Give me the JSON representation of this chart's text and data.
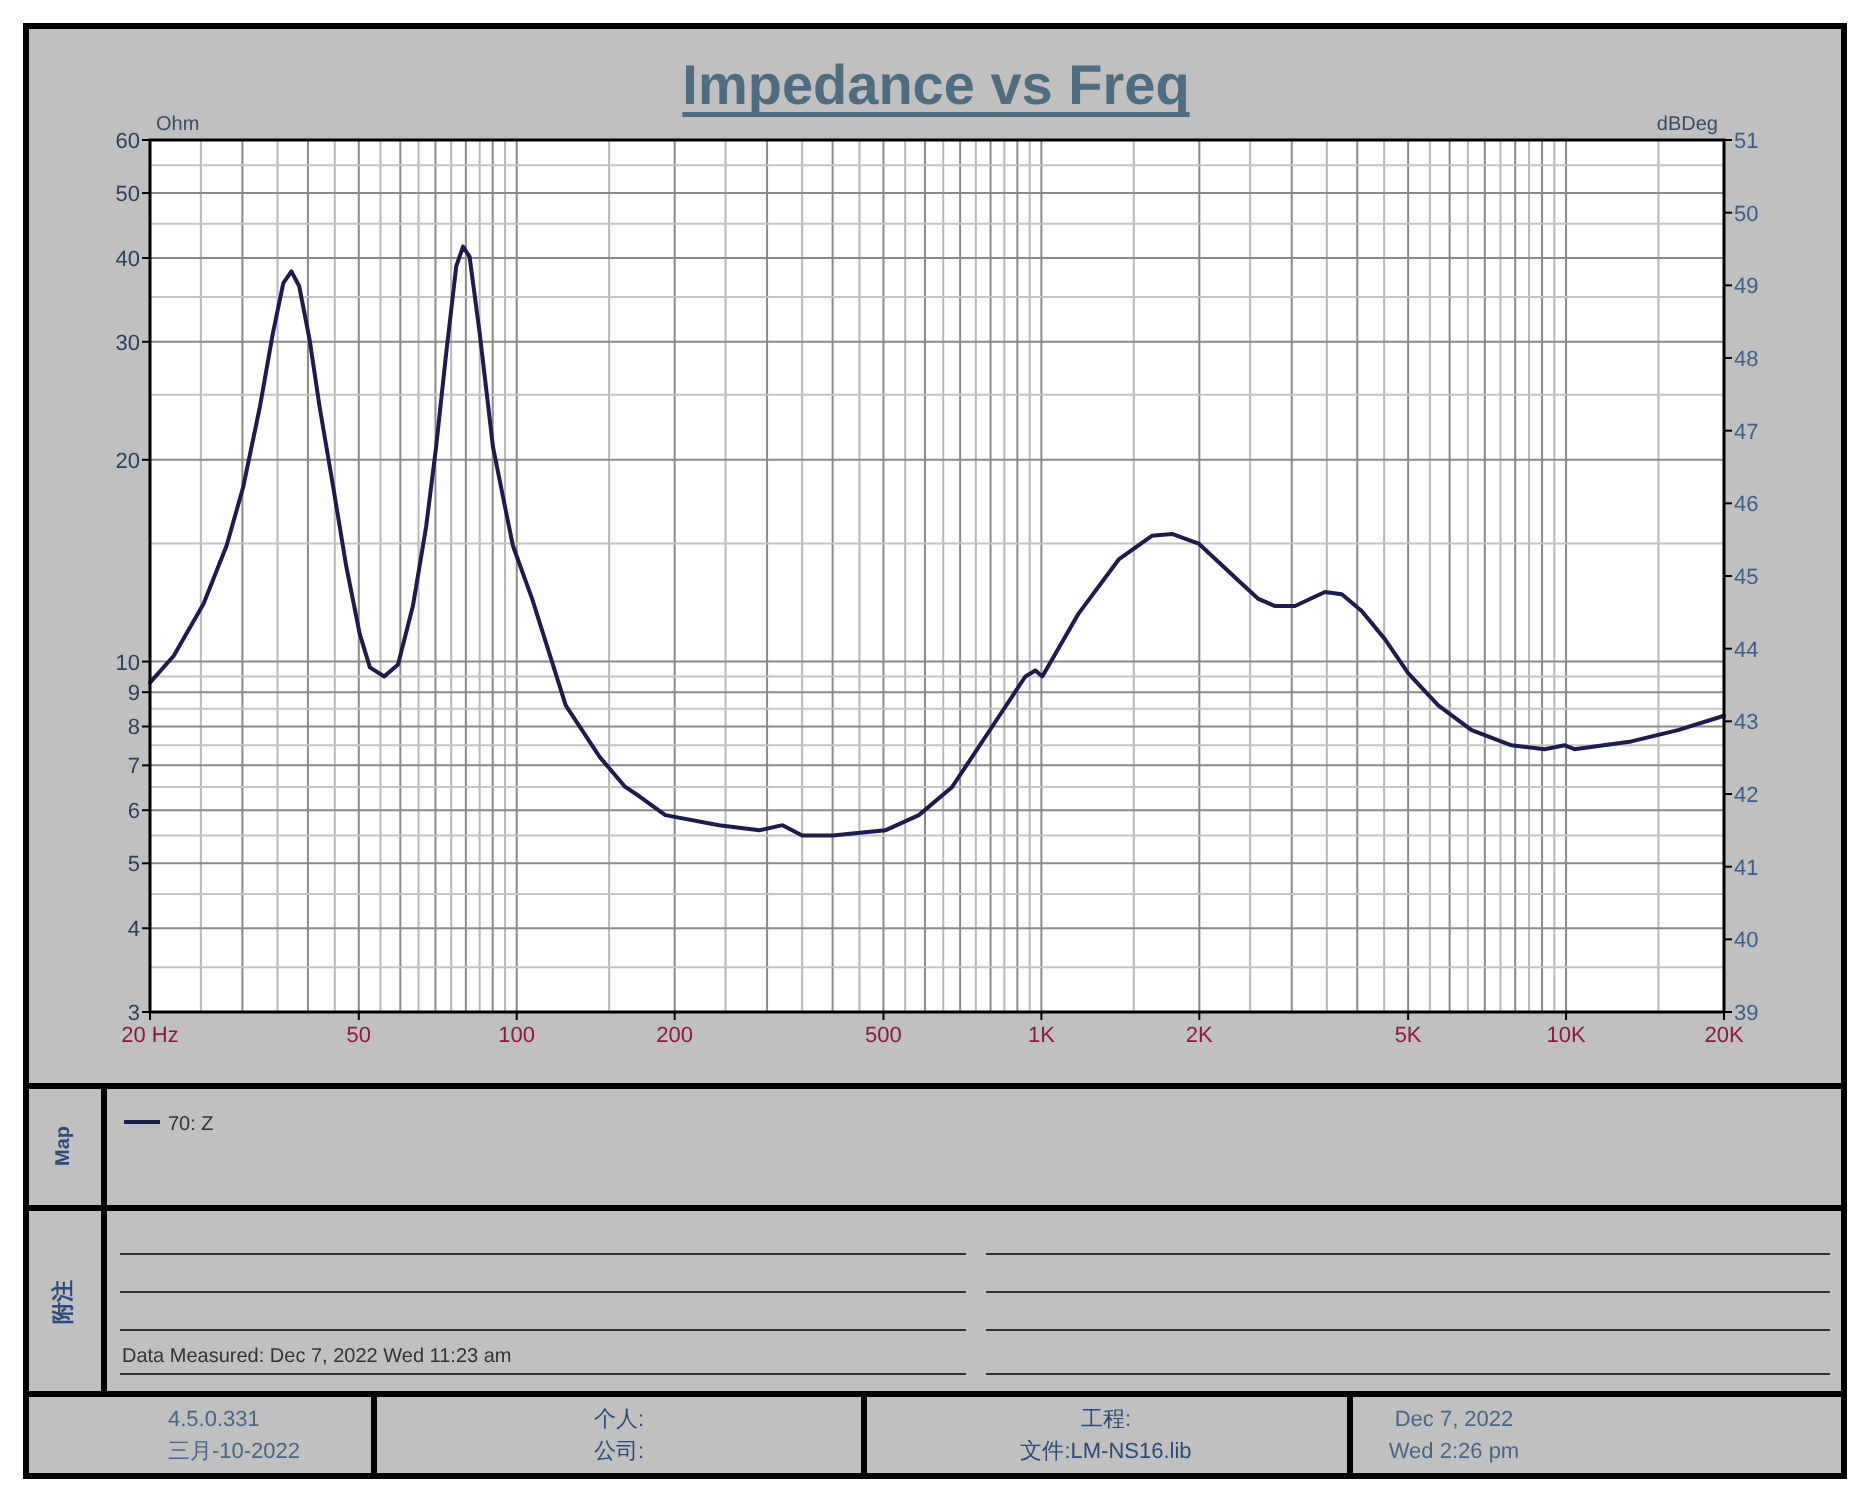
{
  "chart_data": {
    "type": "line",
    "title": "Impedance vs Freq",
    "ylabel": "Ohm",
    "y2label": "dBDeg",
    "log": "xy",
    "grid": true,
    "legend": "bottom",
    "xlim": [
      20,
      20000
    ],
    "xticks": [
      {
        "value": 20,
        "label": "20 Hz"
      },
      50,
      100,
      200,
      500,
      {
        "value": 1000,
        "label": "1K"
      },
      {
        "value": 2000,
        "label": "2K"
      },
      {
        "value": 5000,
        "label": "5K"
      },
      {
        "value": 10000,
        "label": "10K"
      },
      {
        "value": 20000,
        "label": "20K"
      }
    ],
    "ylim": [
      3,
      60
    ],
    "yticks": [
      3,
      4,
      5,
      6,
      7,
      8,
      9,
      10,
      20,
      30,
      40,
      50,
      60
    ],
    "y2lim": [
      39,
      51
    ],
    "y2ticks": [
      39,
      40,
      41,
      42,
      43,
      44,
      45,
      46,
      47,
      48,
      49,
      50,
      51
    ],
    "series": [
      {
        "name": "70: Z",
        "color": "#1c1c4e",
        "x": [
          20,
          22.2,
          25.3,
          28,
          30.1,
          32.4,
          34.3,
          35.9,
          37.2,
          38.5,
          40.3,
          42.1,
          44.7,
          47.3,
          50.2,
          52.5,
          55.9,
          59.4,
          63.4,
          67.2,
          70.2,
          73.4,
          76.7,
          79,
          81.3,
          85,
          90.1,
          98.3,
          107,
          124,
          144,
          161,
          171,
          192,
          243,
          290,
          321,
          350,
          400,
          504,
          584,
          676,
          806,
          932,
          974,
          1004,
          1178,
          1404,
          1624,
          1774,
          1994,
          2376,
          2592,
          2789,
          3044,
          3471,
          3737,
          4078,
          4515,
          5004,
          5706,
          6606,
          7872,
          9100,
          9938,
          10380,
          13316,
          16340,
          20000
        ],
        "values": [
          9.3,
          10.2,
          12.2,
          14.9,
          18.2,
          24,
          30.9,
          36.7,
          38.2,
          36.3,
          30.2,
          24,
          18.2,
          13.9,
          11,
          9.8,
          9.5,
          9.9,
          12.1,
          15.9,
          20.9,
          28.9,
          38.9,
          41.6,
          40.2,
          30.9,
          20.9,
          14.9,
          12.4,
          8.6,
          7.2,
          6.5,
          6.3,
          5.9,
          5.7,
          5.6,
          5.7,
          5.5,
          5.5,
          5.6,
          5.9,
          6.5,
          8,
          9.5,
          9.7,
          9.5,
          11.8,
          14.2,
          15.4,
          15.5,
          15,
          13.2,
          12.4,
          12.1,
          12.1,
          12.7,
          12.6,
          11.9,
          10.8,
          9.6,
          8.6,
          7.9,
          7.5,
          7.4,
          7.5,
          7.4,
          7.6,
          7.9,
          8.3
        ]
      }
    ],
    "annotations": [
      "Map",
      "附注",
      "Data Measured: Dec 7, 2022 Wed 11:23 am",
      "4.5.0.331",
      "三月-10-2022",
      "个人:",
      "公司:",
      "工程:",
      "文件:LM-NS16.lib",
      "Dec 7, 2022",
      "Wed 2:26 pm"
    ]
  }
}
